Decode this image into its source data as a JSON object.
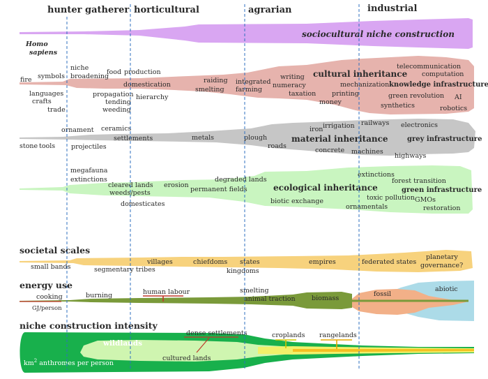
{
  "eras": [
    "hunter gatherer",
    "horticultural",
    "agrarian",
    "industrial"
  ],
  "niche": {
    "title": "sociocultural niche construction",
    "species": [
      "Homo",
      "sapiens"
    ]
  },
  "cultural": {
    "title": "cultural inheritance",
    "labels": [
      "fire",
      "symbols",
      "languages",
      "crafts",
      "trade",
      "niche",
      "broadening",
      "food",
      "production",
      "domestication",
      "propagation",
      "tending",
      "weeding",
      "hierarchy",
      "raiding",
      "smelting",
      "integrated",
      "farming",
      "writing",
      "numeracy",
      "taxation",
      "printing",
      "money",
      "mechanization",
      "telecommunication",
      "computation",
      "knowledge infrastructure",
      "green revolution",
      "synthetics",
      "AI",
      "robotics"
    ]
  },
  "material": {
    "title": "material inheritance",
    "labels": [
      "stone",
      "tools",
      "ornament",
      "projectiles",
      "ceramics",
      "settlements",
      "metals",
      "plough",
      "roads",
      "iron",
      "irrigation",
      "concrete",
      "machines",
      "railways",
      "electronics",
      "highways",
      "grey infrastructure"
    ]
  },
  "ecological": {
    "title": "ecological inheritance",
    "labels": [
      "megafauna",
      "extinctions",
      "cleared lands",
      "weeds/pests",
      "domesticates",
      "erosion",
      "degraded lands",
      "permanent fields",
      "biotic exchange",
      "extinctions",
      "forest transition",
      "toxic pollution",
      "ornamentals",
      "green infrastructure",
      "GMOs",
      "restoration"
    ]
  },
  "societal": {
    "title": "societal scales",
    "labels": [
      "small bands",
      "segmentary tribes",
      "villages",
      "chiefdoms",
      "states",
      "kingdoms",
      "empires",
      "federated states",
      "planetary",
      "governance?"
    ]
  },
  "energy": {
    "title": "energy use",
    "labels": [
      "cooking",
      "GJ/person",
      "burning",
      "human labour",
      "smelting",
      "animal traction",
      "biomass",
      "fossil",
      "abiotic"
    ]
  },
  "intensity": {
    "title": "niche construction intensity",
    "labels": [
      "wildlands",
      "dense settlements",
      "cultured lands",
      "croplands",
      "rangelands"
    ],
    "unit_main": "km",
    "unit_sup": "2",
    "unit_rest": " anthromes per person"
  },
  "colors": {
    "niche": "#d9a6f2",
    "cultural": "#e6b3ad",
    "material": "#c6c6c6",
    "ecological": "#c9f5c0",
    "societal": "#f7d27d",
    "energy_green": "#7a9a3a",
    "fossil": "#f2b088",
    "abiotic": "#acdbe8",
    "wild": "#18b04c",
    "cultured": "#cff5b0",
    "divider": "#2e6fbf"
  }
}
